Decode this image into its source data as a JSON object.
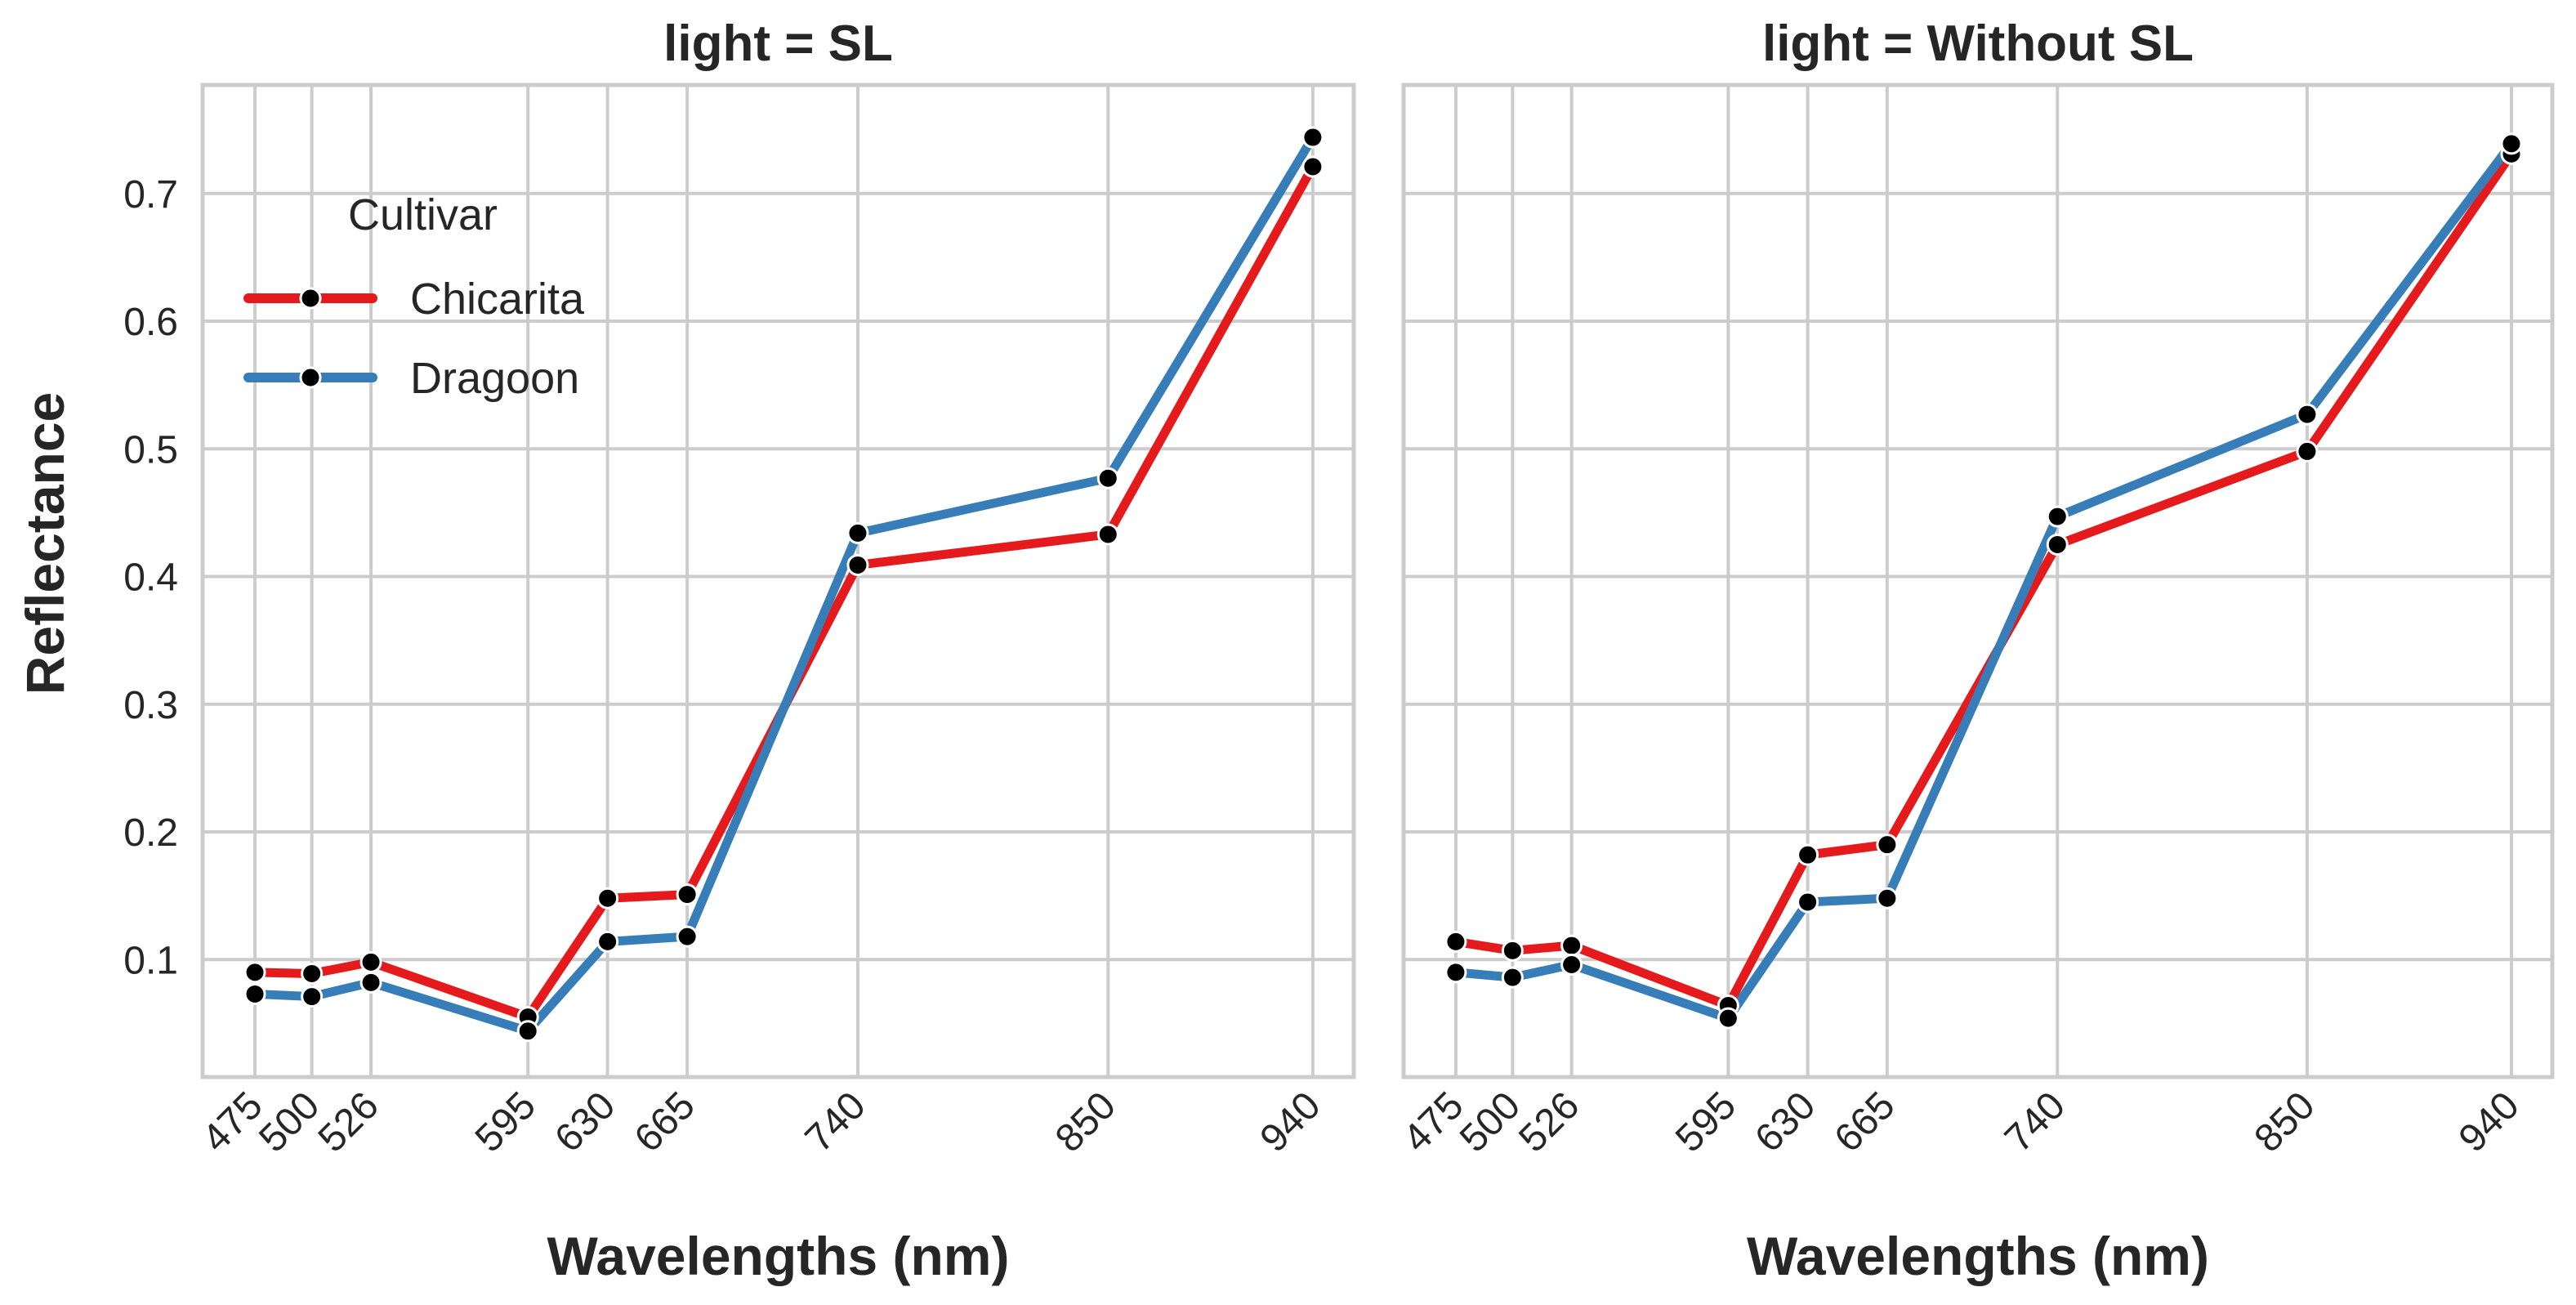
{
  "chart_data": {
    "type": "line",
    "panels": [
      {
        "title": "light = SL",
        "series": [
          {
            "name": "Chicarita",
            "values": [
              0.09,
              0.089,
              0.098,
              0.055,
              0.148,
              0.151,
              0.409,
              0.433,
              0.721
            ]
          },
          {
            "name": "Dragoon",
            "values": [
              0.073,
              0.071,
              0.082,
              0.044,
              0.114,
              0.118,
              0.434,
              0.477,
              0.744
            ]
          }
        ]
      },
      {
        "title": "light = Without SL",
        "series": [
          {
            "name": "Chicarita",
            "values": [
              0.114,
              0.107,
              0.111,
              0.064,
              0.182,
              0.19,
              0.425,
              0.498,
              0.731
            ]
          },
          {
            "name": "Dragoon",
            "values": [
              0.09,
              0.086,
              0.096,
              0.054,
              0.145,
              0.148,
              0.447,
              0.527,
              0.739
            ]
          }
        ]
      }
    ],
    "x": [
      475,
      500,
      526,
      595,
      630,
      665,
      740,
      850,
      940
    ],
    "x_tick_labels": [
      "475",
      "500",
      "526",
      "595",
      "630",
      "665",
      "740",
      "850",
      "940"
    ],
    "xlim": [
      452,
      958
    ],
    "yticks": [
      0.1,
      0.2,
      0.3,
      0.4,
      0.5,
      0.6,
      0.7
    ],
    "ytick_labels": [
      "0.1",
      "0.2",
      "0.3",
      "0.4",
      "0.5",
      "0.6",
      "0.7"
    ],
    "ylim": [
      0.008,
      0.785
    ],
    "xlabel": "Wavelengths (nm)",
    "ylabel": "Reflectance",
    "legend": {
      "title": "Cultivar",
      "placement": "top-left of first panel",
      "entries": [
        {
          "name": "Chicarita",
          "color": "#e41a1c"
        },
        {
          "name": "Dragoon",
          "color": "#377eb8"
        }
      ]
    },
    "colors": {
      "Chicarita": "#e41a1c",
      "Dragoon": "#377eb8",
      "marker": "#000000",
      "grid": "#cccccc"
    }
  }
}
